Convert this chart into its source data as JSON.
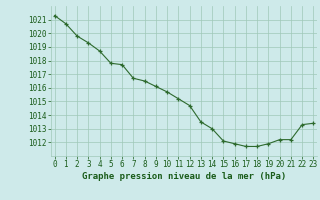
{
  "x": [
    0,
    1,
    2,
    3,
    4,
    5,
    6,
    7,
    8,
    9,
    10,
    11,
    12,
    13,
    14,
    15,
    16,
    17,
    18,
    19,
    20,
    21,
    22,
    23
  ],
  "y": [
    1021.3,
    1020.7,
    1019.8,
    1019.3,
    1018.7,
    1017.8,
    1017.7,
    1016.7,
    1016.5,
    1016.1,
    1015.7,
    1015.2,
    1014.7,
    1013.5,
    1013.0,
    1012.1,
    1011.9,
    1011.7,
    1011.7,
    1011.9,
    1012.2,
    1012.2,
    1013.3,
    1013.4
  ],
  "line_color": "#2d6a2d",
  "marker_color": "#2d6a2d",
  "bg_color": "#ceeaea",
  "grid_color": "#a0c8b8",
  "xlabel": "Graphe pression niveau de la mer (hPa)",
  "ylim_min": 1011.0,
  "ylim_max": 1022.0,
  "ytick_min": 1012,
  "ytick_max": 1021,
  "xlim_min": -0.3,
  "xlim_max": 23.3,
  "title_color": "#1a5c1a",
  "title_fontsize": 6.5,
  "tick_fontsize": 5.5,
  "label_color": "#1a5c1a"
}
